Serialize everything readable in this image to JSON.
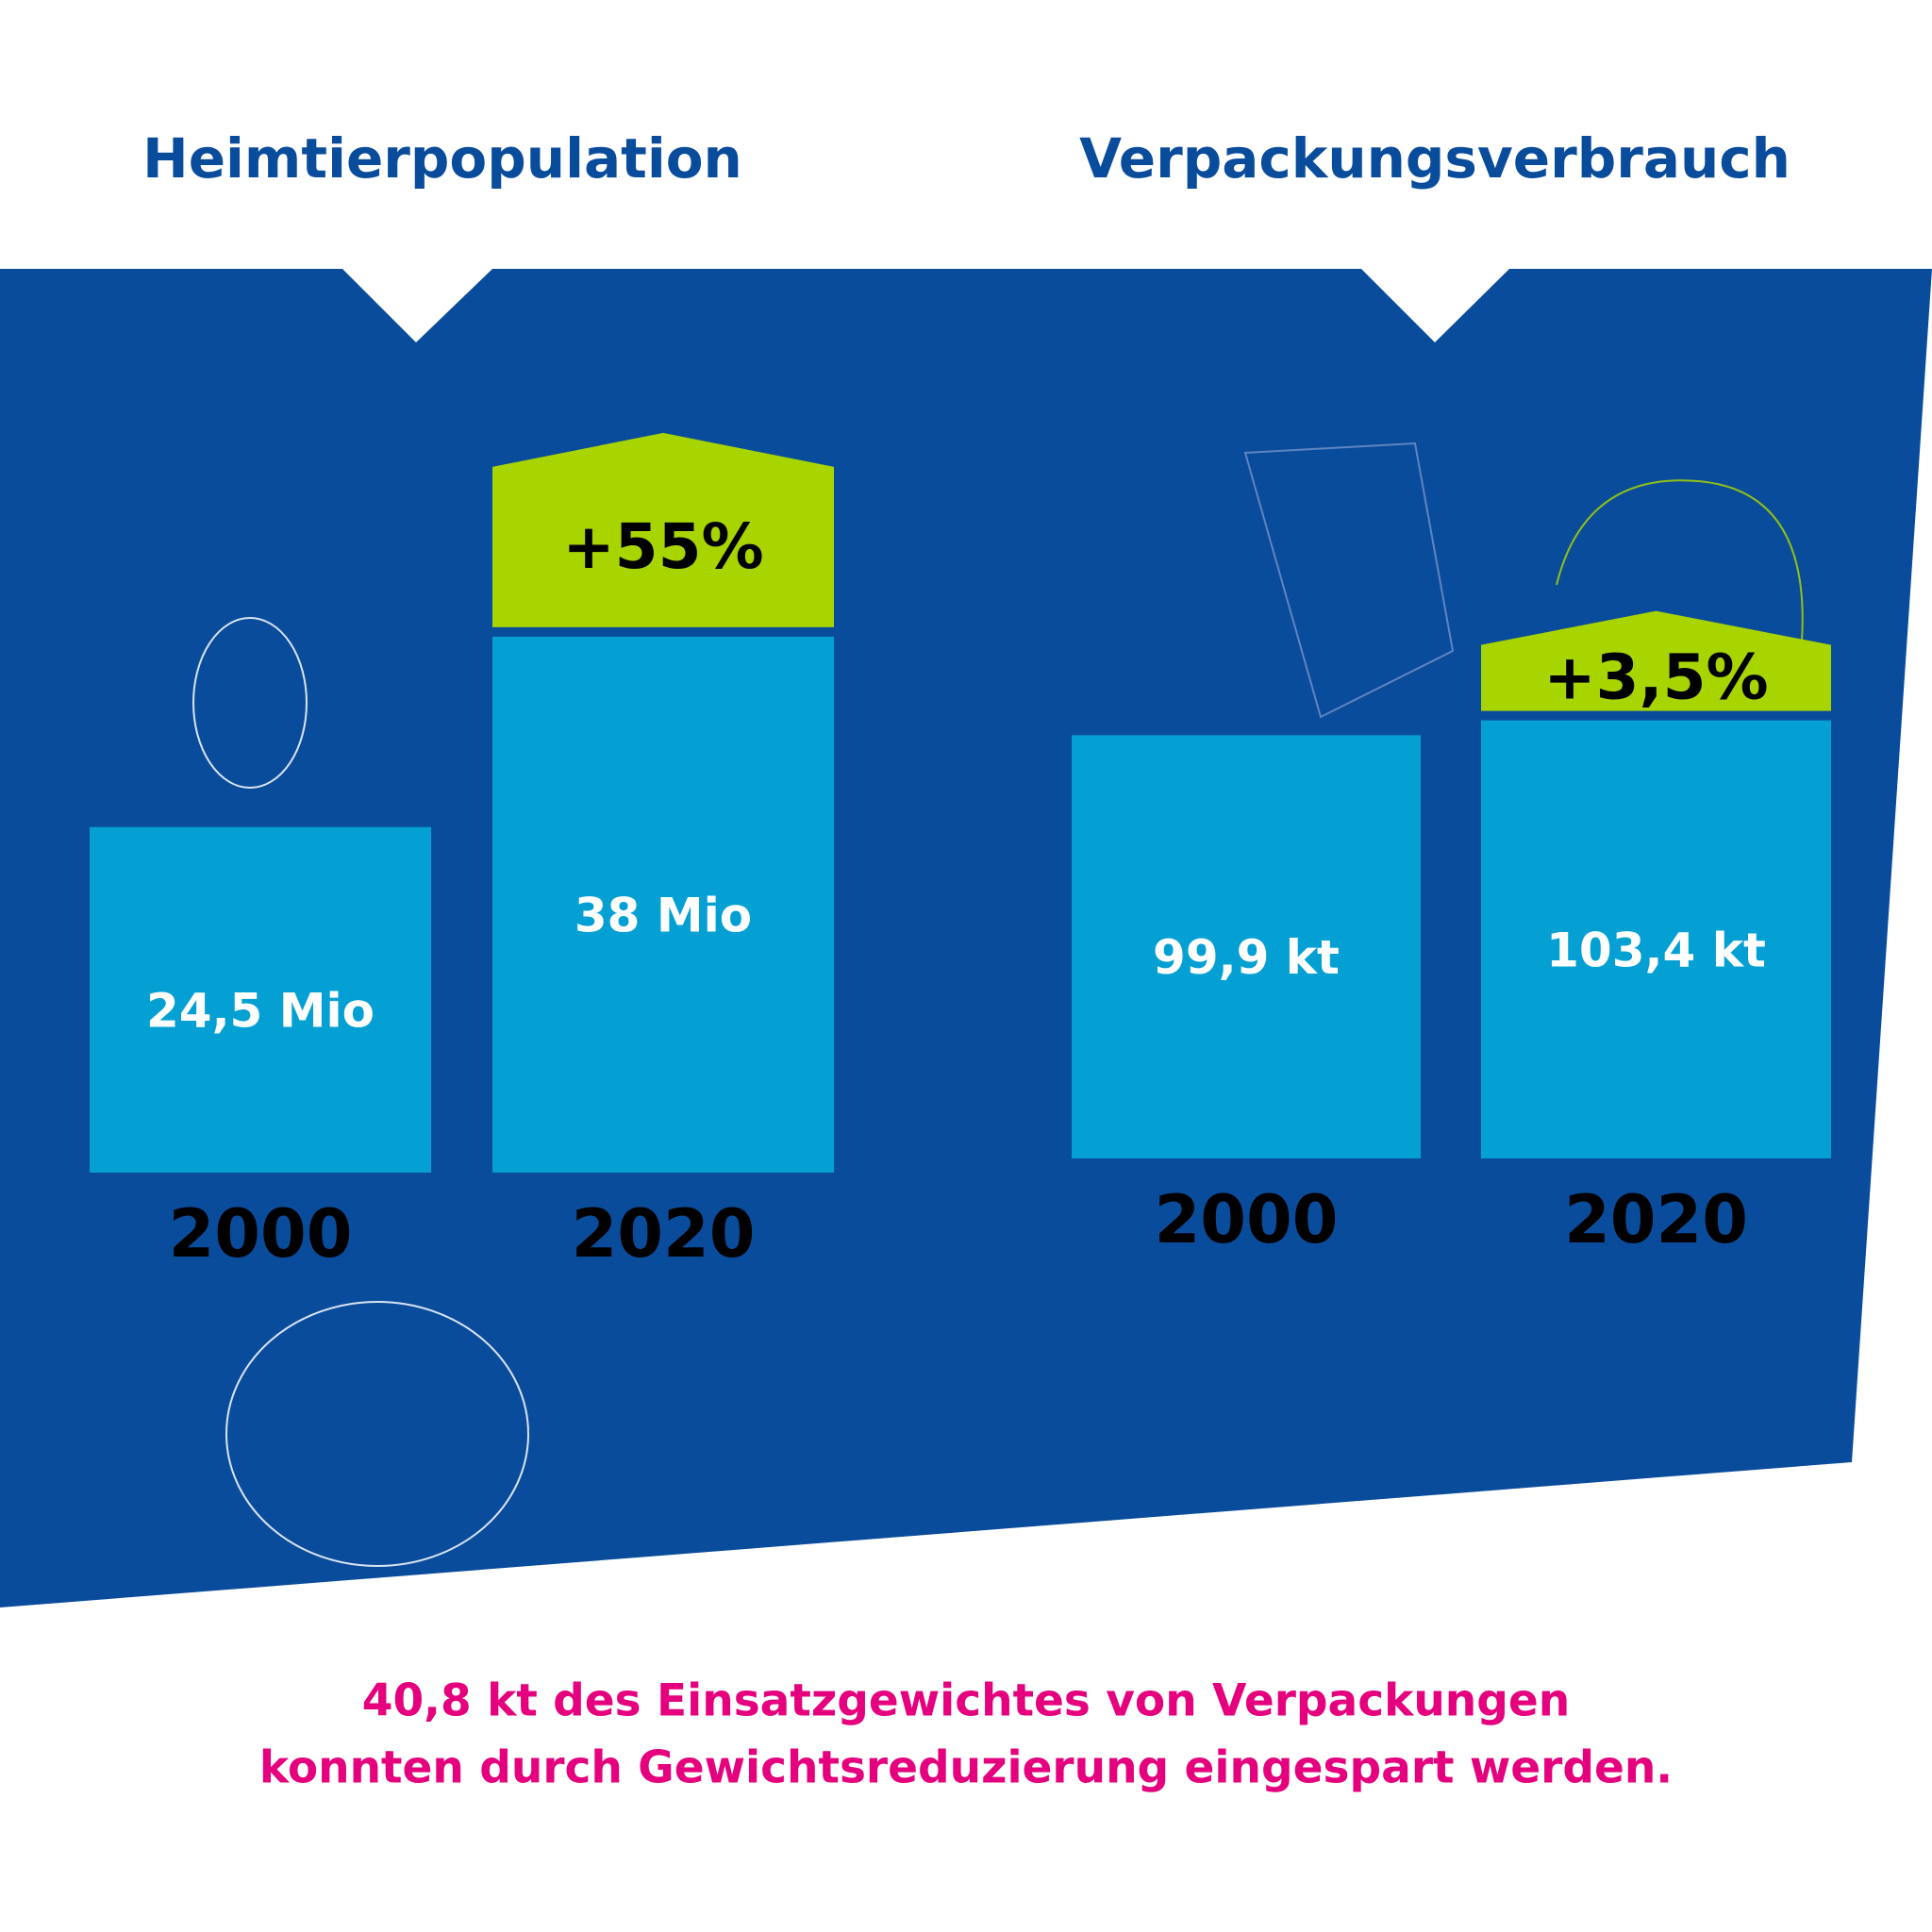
{
  "chart_data": [
    {
      "type": "bar",
      "title": "Heimtierpopulation",
      "categories": [
        "2000",
        "2020"
      ],
      "values": [
        24.5,
        38
      ],
      "value_labels": [
        "24,5 Mio",
        "38 Mio"
      ],
      "annotation": "+55%",
      "color": "#04a0d4",
      "annotation_color": "#a8d400",
      "ylim": [
        0,
        40
      ]
    },
    {
      "type": "bar",
      "title": "Verpackungsverbrauch",
      "categories": [
        "2000",
        "2020"
      ],
      "values": [
        99.9,
        103.4
      ],
      "value_labels": [
        "99,9 kt",
        "103,4 kt"
      ],
      "annotation": "+3,5%",
      "color": "#04a0d4",
      "annotation_color": "#a8d400",
      "ylim": [
        0,
        110
      ]
    }
  ],
  "footer": [
    "40,8 kt des Einsatzgewichtes von Verpackungen",
    "konnten durch Gewichtsreduzierung eingespart werden."
  ]
}
